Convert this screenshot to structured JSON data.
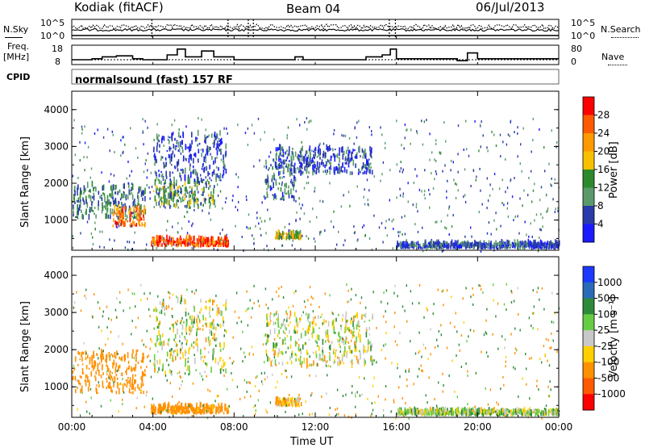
{
  "header": {
    "station": "Kodiak (fitACF)",
    "beam": "Beam 04",
    "date": "06/Jul/2013"
  },
  "strip_panels": {
    "nsky_label": "N.Sky",
    "nsky_ticks": [
      "10^5",
      "10^0"
    ],
    "nsearch_label": "N.Search",
    "nsearch_ticks": [
      "10^5",
      "10^0"
    ],
    "freq_label_1": "Freq.",
    "freq_label_2": "[MHz]",
    "freq_ticks": [
      "18",
      "8"
    ],
    "nave_label": "Nave",
    "nave_ticks": [
      "80",
      "0"
    ],
    "cpid_label": "CPID",
    "cpid_text": "normalsound (fast) 157 RF"
  },
  "axes": {
    "ylabel": "Slant Range [km]",
    "yticks": [
      "4000",
      "3000",
      "2000",
      "1000"
    ],
    "xlabel": "Time UT",
    "xticks": [
      "00:00",
      "04:00",
      "08:00",
      "12:00",
      "16:00",
      "20:00",
      "00:00"
    ]
  },
  "power_colorbar": {
    "label": "Power [dB]",
    "ticks": [
      "28",
      "24",
      "20",
      "16",
      "12",
      "8",
      "4"
    ],
    "colors": [
      "#ff0000",
      "#ff5a00",
      "#ff9a00",
      "#f7c000",
      "#2c8a2c",
      "#5a9a6a",
      "#2a3aa8",
      "#1a1aff"
    ]
  },
  "velocity_colorbar": {
    "label": "Velocity [m s⁻¹]",
    "ticks": [
      "1000",
      "500",
      "100",
      "25",
      "-25",
      "-100",
      "-500",
      "-1000"
    ],
    "colors": [
      "#1a3aff",
      "#2a6ab8",
      "#2c8a3a",
      "#66cc44",
      "#c8c8c8",
      "#ffd000",
      "#ff9000",
      "#ff5a00",
      "#ff0000"
    ]
  },
  "chart_data": {
    "type": "heatmap",
    "x_range_hours": [
      0,
      24
    ],
    "y_range_km": [
      180,
      4500
    ],
    "power_panel": {
      "ylim": [
        180,
        4500
      ],
      "echo_regions": [
        {
          "t0": 0.0,
          "t1": 3.6,
          "r0": 1000,
          "r1": 1900,
          "power_db": 10
        },
        {
          "t0": 2.0,
          "t1": 3.6,
          "r0": 800,
          "r1": 1300,
          "power_db": 24
        },
        {
          "t0": 3.9,
          "t1": 7.7,
          "r0": 250,
          "r1": 450,
          "power_db": 26
        },
        {
          "t0": 4.0,
          "t1": 7.0,
          "r0": 1300,
          "r1": 2000,
          "power_db": 12
        },
        {
          "t0": 4.0,
          "t1": 7.6,
          "r0": 2000,
          "r1": 3300,
          "power_db": 6
        },
        {
          "t0": 9.5,
          "t1": 11.0,
          "r0": 1500,
          "r1": 2600,
          "power_db": 8
        },
        {
          "t0": 10.0,
          "t1": 14.8,
          "r0": 2200,
          "r1": 2900,
          "power_db": 6
        },
        {
          "t0": 10.0,
          "t1": 11.3,
          "r0": 450,
          "r1": 600,
          "power_db": 16
        },
        {
          "t0": 16.0,
          "t1": 24.0,
          "r0": 200,
          "r1": 320,
          "power_db": 6
        }
      ]
    },
    "velocity_panel": {
      "ylim": [
        180,
        4500
      ],
      "echo_regions": [
        {
          "t0": 0.0,
          "t1": 3.6,
          "r0": 800,
          "r1": 1900,
          "velocity": -300
        },
        {
          "t0": 3.9,
          "t1": 7.7,
          "r0": 250,
          "r1": 450,
          "velocity": -200
        },
        {
          "t0": 4.0,
          "t1": 7.6,
          "r0": 1300,
          "r1": 3300,
          "velocity": 0
        },
        {
          "t0": 9.5,
          "t1": 14.8,
          "r0": 1500,
          "r1": 2900,
          "velocity": 0
        },
        {
          "t0": 10.0,
          "t1": 11.3,
          "r0": 450,
          "r1": 600,
          "velocity": -100
        },
        {
          "t0": 16.0,
          "t1": 24.0,
          "r0": 200,
          "r1": 320,
          "velocity": 50
        }
      ]
    },
    "freq_mhz_steps": [
      {
        "t": 0,
        "v": 10.5
      },
      {
        "t": 1.0,
        "v": 11
      },
      {
        "t": 1.5,
        "v": 12
      },
      {
        "t": 2.2,
        "v": 12.5
      },
      {
        "t": 3.0,
        "v": 11
      },
      {
        "t": 3.5,
        "v": 10.5
      },
      {
        "t": 4.7,
        "v": 13
      },
      {
        "t": 5.2,
        "v": 16
      },
      {
        "t": 5.6,
        "v": 12
      },
      {
        "t": 6.4,
        "v": 15
      },
      {
        "t": 7.0,
        "v": 12
      },
      {
        "t": 8.0,
        "v": 10.5
      },
      {
        "t": 11.0,
        "v": 12
      },
      {
        "t": 11.4,
        "v": 10.5
      },
      {
        "t": 14.5,
        "v": 12
      },
      {
        "t": 15.3,
        "v": 13
      },
      {
        "t": 15.7,
        "v": 16
      },
      {
        "t": 16.0,
        "v": 11
      },
      {
        "t": 19.0,
        "v": 10
      },
      {
        "t": 19.5,
        "v": 14
      },
      {
        "t": 20.0,
        "v": 11
      },
      {
        "t": 24.0,
        "v": 11
      }
    ]
  }
}
